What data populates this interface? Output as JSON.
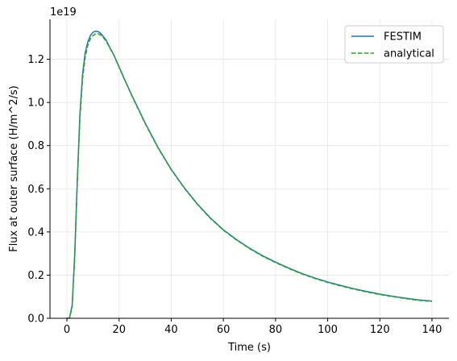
{
  "chart_data": {
    "type": "line",
    "xlabel": "Time (s)",
    "ylabel": "Flux at outer surface (H/m^2/s)",
    "offset_text": "1e19",
    "scale": 1e+19,
    "xlim": [
      -6.5,
      146.5
    ],
    "ylim": [
      0,
      1.385
    ],
    "xticks": [
      0,
      20,
      40,
      60,
      80,
      100,
      120,
      140
    ],
    "yticks": [
      0.0,
      0.2,
      0.4,
      0.6,
      0.8,
      1.0,
      1.2
    ],
    "ytick_labels": [
      "0.0",
      "0.2",
      "0.4",
      "0.6",
      "0.8",
      "1.0",
      "1.2"
    ],
    "grid": true,
    "legend_position": "top-right",
    "series": [
      {
        "name": "FESTIM",
        "color": "#1f77b4",
        "style": "solid",
        "x": [
          0,
          1,
          2,
          3,
          4,
          5,
          6,
          7,
          8,
          9,
          10,
          11,
          12,
          13,
          14,
          15,
          16,
          18,
          20,
          22,
          25,
          30,
          35,
          40,
          45,
          50,
          55,
          60,
          65,
          70,
          75,
          80,
          85,
          90,
          95,
          100,
          105,
          110,
          115,
          120,
          125,
          130,
          135,
          140
        ],
        "y": [
          0,
          0.002,
          0.06,
          0.3,
          0.65,
          0.95,
          1.13,
          1.23,
          1.28,
          1.31,
          1.325,
          1.33,
          1.328,
          1.32,
          1.305,
          1.29,
          1.265,
          1.22,
          1.165,
          1.11,
          1.03,
          0.905,
          0.79,
          0.69,
          0.605,
          0.53,
          0.465,
          0.41,
          0.365,
          0.325,
          0.29,
          0.26,
          0.233,
          0.208,
          0.187,
          0.168,
          0.152,
          0.137,
          0.124,
          0.112,
          0.102,
          0.093,
          0.085,
          0.08
        ]
      },
      {
        "name": "analytical",
        "color": "#2ca02c",
        "style": "dashed",
        "x": [
          0,
          1,
          2,
          3,
          4,
          5,
          6,
          7,
          8,
          9,
          10,
          11,
          12,
          13,
          14,
          15,
          16,
          18,
          20,
          22,
          25,
          30,
          35,
          40,
          45,
          50,
          55,
          60,
          65,
          70,
          75,
          80,
          85,
          90,
          95,
          100,
          105,
          110,
          115,
          120,
          125,
          130,
          135,
          140
        ],
        "y": [
          0,
          0.001,
          0.05,
          0.28,
          0.63,
          0.93,
          1.11,
          1.21,
          1.265,
          1.295,
          1.31,
          1.318,
          1.318,
          1.312,
          1.3,
          1.285,
          1.262,
          1.218,
          1.163,
          1.108,
          1.028,
          0.902,
          0.788,
          0.688,
          0.603,
          0.528,
          0.463,
          0.408,
          0.363,
          0.323,
          0.288,
          0.258,
          0.231,
          0.206,
          0.185,
          0.166,
          0.15,
          0.135,
          0.122,
          0.11,
          0.1,
          0.091,
          0.083,
          0.078
        ]
      }
    ]
  }
}
